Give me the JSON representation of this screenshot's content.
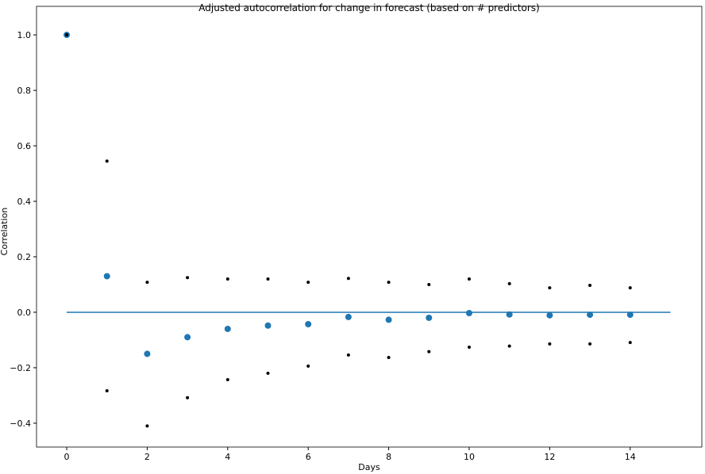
{
  "chart_data": {
    "type": "scatter",
    "title": "Adjusted autocorrelation for change in forecast (based on # predictors)",
    "x_label": "Days",
    "y_label": "Correlation",
    "xlim": [
      -0.75,
      15.78
    ],
    "ylim": [
      -0.486,
      1.103
    ],
    "xticks": [
      0,
      2,
      4,
      6,
      8,
      10,
      12,
      14
    ],
    "yticks": [
      {
        "value": -0.4,
        "label": "−0.4"
      },
      {
        "value": -0.2,
        "label": "−0.2"
      },
      {
        "value": 0,
        "label": "0.0"
      },
      {
        "value": 0.2,
        "label": "0.2"
      },
      {
        "value": 0.4,
        "label": "0.4"
      },
      {
        "value": 0.6,
        "label": "0.6"
      },
      {
        "value": 0.8,
        "label": "0.8"
      },
      {
        "value": 1,
        "label": "1.0"
      }
    ],
    "series": [
      {
        "style": "line",
        "color": "#1f77b4",
        "x": [
          0,
          15
        ],
        "values": [
          0,
          0
        ]
      },
      {
        "style": "dot",
        "color": "#1f77b4",
        "size": 4,
        "x": [
          0,
          1,
          2,
          3,
          4,
          5,
          6,
          7,
          8,
          9,
          10,
          11,
          12,
          13,
          14
        ],
        "values": [
          1.0,
          0.13,
          -0.15,
          -0.09,
          -0.06,
          -0.048,
          -0.043,
          -0.017,
          -0.027,
          -0.02,
          -0.003,
          -0.008,
          -0.011,
          -0.009,
          -0.009
        ]
      },
      {
        "style": "dot",
        "color": "#000000",
        "size": 2,
        "x": [
          0,
          1,
          2,
          3,
          4,
          5,
          6,
          7,
          8,
          9,
          10,
          11,
          12,
          13,
          14
        ],
        "values": [
          1.0,
          0.545,
          0.108,
          0.125,
          0.12,
          0.12,
          0.108,
          0.122,
          0.108,
          0.1,
          0.12,
          0.103,
          0.088,
          0.097,
          0.088
        ]
      },
      {
        "style": "dot",
        "color": "#000000",
        "size": 2,
        "x": [
          0,
          1,
          2,
          3,
          4,
          5,
          6,
          7,
          8,
          9,
          10,
          11,
          12,
          13,
          14
        ],
        "values": [
          1.0,
          -0.283,
          -0.41,
          -0.308,
          -0.243,
          -0.22,
          -0.194,
          -0.154,
          -0.163,
          -0.142,
          -0.126,
          -0.122,
          -0.114,
          -0.114,
          -0.109
        ]
      }
    ]
  }
}
